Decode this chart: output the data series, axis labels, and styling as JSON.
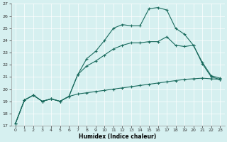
{
  "xlabel": "Humidex (Indice chaleur)",
  "xlim": [
    -0.5,
    23.5
  ],
  "ylim": [
    17,
    27
  ],
  "yticks": [
    17,
    18,
    19,
    20,
    21,
    22,
    23,
    24,
    25,
    26,
    27
  ],
  "xticks": [
    0,
    1,
    2,
    3,
    4,
    5,
    6,
    7,
    8,
    9,
    10,
    11,
    12,
    13,
    14,
    15,
    16,
    17,
    18,
    19,
    20,
    21,
    22,
    23
  ],
  "bg_color": "#d6f0f0",
  "line_color": "#1a6b5e",
  "line1_x": [
    0,
    1,
    2,
    3,
    4,
    5,
    6,
    7,
    8,
    9,
    10,
    11,
    12,
    13,
    14,
    15,
    16,
    17,
    18,
    19,
    20,
    21,
    22,
    23
  ],
  "line1_y": [
    17.2,
    19.1,
    19.5,
    19.0,
    19.2,
    19.0,
    19.4,
    19.6,
    19.7,
    19.8,
    19.9,
    20.0,
    20.1,
    20.2,
    20.3,
    20.4,
    20.5,
    20.6,
    20.7,
    20.8,
    20.85,
    20.9,
    20.85,
    20.8
  ],
  "line2_x": [
    0,
    1,
    2,
    3,
    4,
    5,
    6,
    7,
    8,
    9,
    10,
    11,
    12,
    13,
    14,
    15,
    16,
    17,
    18,
    19,
    20,
    21,
    22,
    23
  ],
  "line2_y": [
    17.2,
    19.1,
    19.5,
    19.0,
    19.2,
    19.0,
    19.4,
    21.2,
    21.9,
    22.3,
    22.8,
    23.3,
    23.6,
    23.8,
    23.8,
    23.9,
    23.9,
    24.3,
    23.6,
    23.5,
    23.6,
    22.1,
    21.0,
    20.8
  ],
  "line3_x": [
    0,
    1,
    2,
    3,
    4,
    5,
    6,
    7,
    8,
    9,
    10,
    11,
    12,
    13,
    14,
    15,
    16,
    17,
    18,
    19,
    20,
    21,
    22,
    23
  ],
  "line3_y": [
    17.2,
    19.1,
    19.5,
    19.0,
    19.2,
    19.0,
    19.4,
    21.2,
    22.5,
    23.1,
    24.0,
    25.0,
    25.3,
    25.2,
    25.2,
    26.6,
    26.7,
    26.5,
    25.0,
    24.5,
    23.6,
    22.2,
    21.1,
    20.9
  ]
}
